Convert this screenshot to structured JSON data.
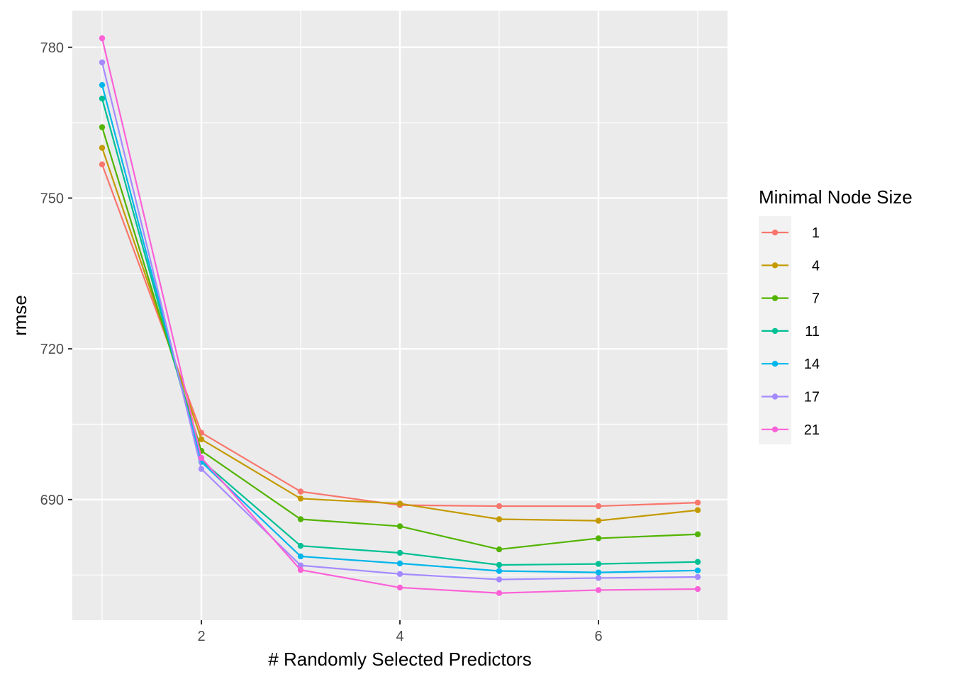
{
  "chart_data": {
    "type": "line",
    "xlabel": "# Randomly Selected Predictors",
    "ylabel": "rmse",
    "xlim": [
      0.7,
      7.3
    ],
    "ylim": [
      666,
      787.3
    ],
    "x_ticks": [
      2,
      4,
      6
    ],
    "y_ticks": [
      690,
      720,
      750,
      780
    ],
    "grid": true,
    "legend_title": "Minimal Node Size",
    "legend_position": "right",
    "x": [
      1,
      2,
      3,
      4,
      5,
      6,
      7
    ],
    "series": [
      {
        "name": "1",
        "color": "#F8766D",
        "values": [
          756.7,
          703.3,
          691.6,
          688.9,
          688.7,
          688.7,
          689.4
        ]
      },
      {
        "name": "4",
        "color": "#C49A00",
        "values": [
          760.0,
          702.0,
          690.2,
          689.2,
          686.1,
          685.8,
          687.9
        ]
      },
      {
        "name": "7",
        "color": "#53B400",
        "values": [
          764.1,
          699.7,
          686.1,
          684.7,
          680.1,
          682.3,
          683.1
        ]
      },
      {
        "name": "11",
        "color": "#00C094",
        "values": [
          769.8,
          697.8,
          680.8,
          679.4,
          677.0,
          677.2,
          677.6
        ]
      },
      {
        "name": "14",
        "color": "#00B6EB",
        "values": [
          772.5,
          697.5,
          678.7,
          677.3,
          675.8,
          675.5,
          675.9
        ]
      },
      {
        "name": "17",
        "color": "#A58AFF",
        "values": [
          777.0,
          696.1,
          676.9,
          675.2,
          674.1,
          674.4,
          674.6
        ]
      },
      {
        "name": "21",
        "color": "#FB61D7",
        "values": [
          781.8,
          698.3,
          676.0,
          672.5,
          671.4,
          672.0,
          672.2
        ]
      }
    ]
  }
}
